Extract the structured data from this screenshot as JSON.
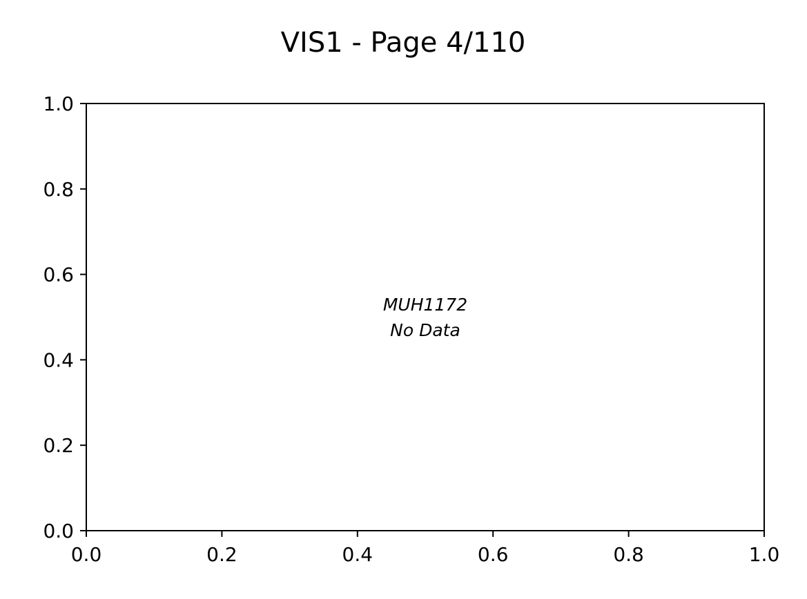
{
  "chart_data": {
    "type": "scatter",
    "title": "VIS1 - Page 4/110",
    "xlabel": "",
    "ylabel": "",
    "xlim": [
      0.0,
      1.0
    ],
    "ylim": [
      0.0,
      1.0
    ],
    "x_ticks": [
      "0.0",
      "0.2",
      "0.4",
      "0.6",
      "0.8",
      "1.0"
    ],
    "y_ticks": [
      "0.0",
      "0.2",
      "0.4",
      "0.6",
      "0.8",
      "1.0"
    ],
    "grid": false,
    "series": [],
    "annotations": [
      {
        "text": "MUH1172",
        "x": 0.5,
        "y": 0.53
      },
      {
        "text": "No Data",
        "x": 0.5,
        "y": 0.47
      }
    ]
  }
}
